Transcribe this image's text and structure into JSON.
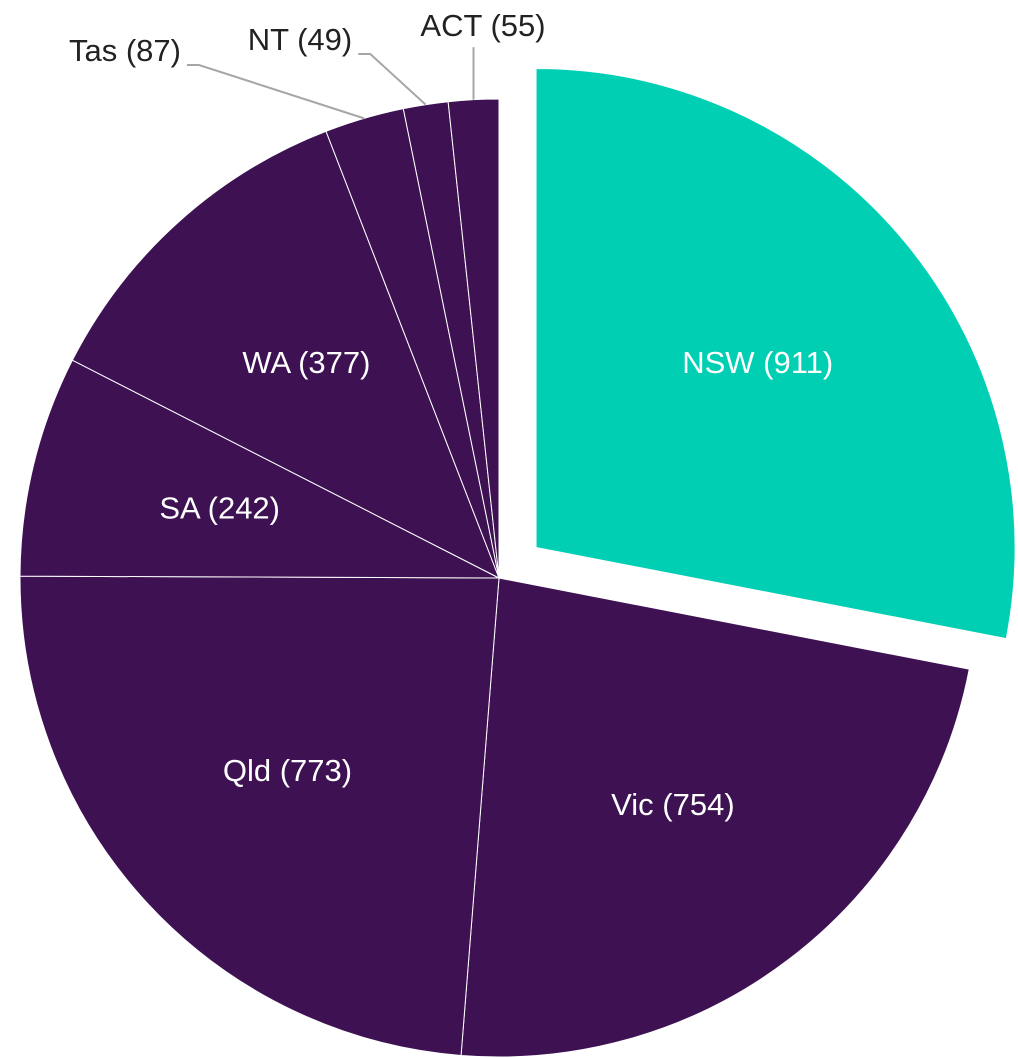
{
  "chart_data": {
    "type": "pie",
    "values": [
      911,
      754,
      773,
      242,
      377,
      87,
      49,
      55
    ],
    "value_labels": [
      "NSW (911)",
      "Vic (754)",
      "Qld (773)",
      "SA (242)",
      "WA (377)",
      "Tas (87)",
      "NT (49)",
      "ACT (55)"
    ],
    "colors": [
      "#00cfb4",
      "#3d1152",
      "#3d1152",
      "#3d1152",
      "#3d1152",
      "#3d1152",
      "#3d1152",
      "#3d1152"
    ],
    "exploded": [
      0
    ]
  }
}
